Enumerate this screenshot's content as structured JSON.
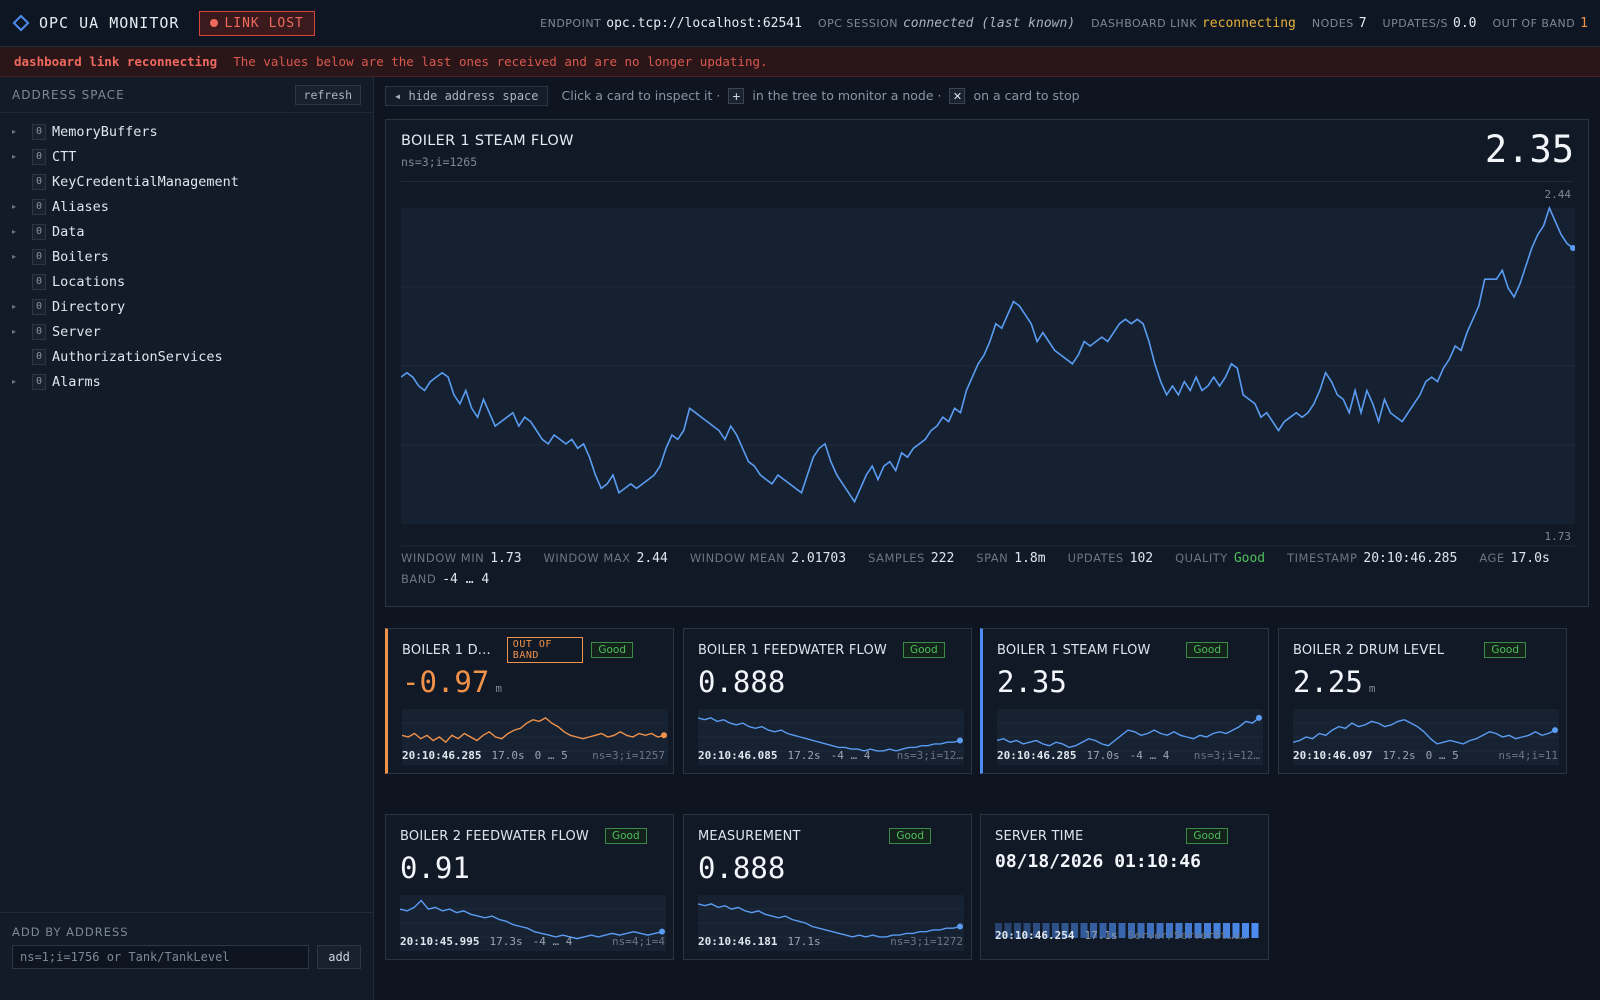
{
  "app": {
    "title": "OPC UA MONITOR",
    "link_status": "LINK LOST"
  },
  "status": {
    "endpoint_label": "ENDPOINT",
    "endpoint": "opc.tcp://localhost:62541",
    "session_label": "OPC SESSION",
    "session": "connected (last known)",
    "dashboard_label": "DASHBOARD LINK",
    "dashboard": "reconnecting",
    "nodes_label": "NODES",
    "nodes": "7",
    "updates_label": "UPDATES/S",
    "updates": "0.0",
    "oob_label": "OUT OF BAND",
    "oob": "1"
  },
  "banner": {
    "strong": "dashboard link reconnecting",
    "text": "The values below are the last ones received and are no longer updating."
  },
  "sidebar": {
    "title": "ADDRESS SPACE",
    "refresh_label": "refresh",
    "items": [
      {
        "label": "MemoryBuffers",
        "ns": "0",
        "expandable": true
      },
      {
        "label": "CTT",
        "ns": "0",
        "expandable": true
      },
      {
        "label": "KeyCredentialManagement",
        "ns": "0",
        "expandable": false
      },
      {
        "label": "Aliases",
        "ns": "0",
        "expandable": true
      },
      {
        "label": "Data",
        "ns": "0",
        "expandable": true
      },
      {
        "label": "Boilers",
        "ns": "0",
        "expandable": true
      },
      {
        "label": "Locations",
        "ns": "0",
        "expandable": false
      },
      {
        "label": "Directory",
        "ns": "0",
        "expandable": true
      },
      {
        "label": "Server",
        "ns": "0",
        "expandable": true
      },
      {
        "label": "AuthorizationServices",
        "ns": "0",
        "expandable": false
      },
      {
        "label": "Alarms",
        "ns": "0",
        "expandable": true
      }
    ],
    "add_title": "ADD BY ADDRESS",
    "add_placeholder": "ns=1;i=1756 or Tank/TankLevel",
    "add_button": "add"
  },
  "toolbar": {
    "hide_label": "◂ hide address space",
    "hint_1": "Click a card to inspect it ·",
    "hint_plus": "+",
    "hint_2": "in the tree to monitor a node ·",
    "hint_x": "✕",
    "hint_3": "on a card to stop"
  },
  "detail": {
    "title": "BOILER 1 STEAM FLOW",
    "ns": "ns=3;i=1265",
    "value": "2.35",
    "axis_max": "2.44",
    "axis_min": "1.73",
    "stats": {
      "window_min_label": "WINDOW MIN",
      "window_min": "1.73",
      "window_max_label": "WINDOW MAX",
      "window_max": "2.44",
      "window_mean_label": "WINDOW MEAN",
      "window_mean": "2.01703",
      "samples_label": "SAMPLES",
      "samples": "222",
      "span_label": "SPAN",
      "span": "1.8m",
      "updates_label": "UPDATES",
      "updates": "102",
      "quality_label": "QUALITY",
      "quality": "Good",
      "timestamp_label": "TIMESTAMP",
      "timestamp": "20:10:46.285",
      "age_label": "AGE",
      "age": "17.0s",
      "band_label": "BAND",
      "band": "-4 … 4"
    }
  },
  "cards": [
    {
      "title": "BOILER 1 D...",
      "oob": "OUT OF BAND",
      "quality": "Good",
      "value": "-0.97",
      "unit": "m",
      "ts": "20:10:46.285",
      "age": "17.0s",
      "band": "0 … 5",
      "ns": "ns=3;i=1257"
    },
    {
      "title": "BOILER 1 FEEDWATER FLOW",
      "quality": "Good",
      "value": "0.888",
      "ts": "20:10:46.085",
      "age": "17.2s",
      "band": "-4 … 4",
      "ns": "ns=3;i=12…"
    },
    {
      "title": "BOILER 1 STEAM FLOW",
      "quality": "Good",
      "value": "2.35",
      "ts": "20:10:46.285",
      "age": "17.0s",
      "band": "-4 … 4",
      "ns": "ns=3;i=12…"
    },
    {
      "title": "BOILER 2 DRUM LEVEL",
      "quality": "Good",
      "value": "2.25",
      "unit": "m",
      "ts": "20:10:46.097",
      "age": "17.2s",
      "band": "0 … 5",
      "ns": "ns=4;i=11"
    },
    {
      "title": "BOILER 2 FEEDWATER FLOW",
      "quality": "Good",
      "value": "0.91",
      "ts": "20:10:45.995",
      "age": "17.3s",
      "band": "-4 … 4",
      "ns": "ns=4;i=4"
    },
    {
      "title": "MEASUREMENT",
      "quality": "Good",
      "value": "0.888",
      "ts": "20:10:46.181",
      "age": "17.1s",
      "ns": "ns=3;i=1272"
    },
    {
      "title": "SERVER TIME",
      "quality": "Good",
      "value": "08/18/2026 01:10:46",
      "ts": "20:10:46.254",
      "age": "17.1s",
      "ns": "Server/ServerSt…u…"
    }
  ],
  "chart_data": [
    {
      "type": "line",
      "title": "BOILER 1 STEAM FLOW",
      "ylim": [
        1.73,
        2.44
      ],
      "grid": true,
      "series": [
        {
          "color": "#5a9cf2",
          "values": [
            2.06,
            2.07,
            2.06,
            2.04,
            2.03,
            2.05,
            2.06,
            2.07,
            2.06,
            2.02,
            2.0,
            2.03,
            1.99,
            1.97,
            2.01,
            1.98,
            1.95,
            1.96,
            1.97,
            1.98,
            1.95,
            1.97,
            1.96,
            1.94,
            1.92,
            1.91,
            1.93,
            1.92,
            1.91,
            1.92,
            1.9,
            1.91,
            1.88,
            1.84,
            1.81,
            1.82,
            1.84,
            1.8,
            1.81,
            1.82,
            1.81,
            1.82,
            1.83,
            1.84,
            1.86,
            1.9,
            1.93,
            1.92,
            1.94,
            1.99,
            1.98,
            1.97,
            1.96,
            1.95,
            1.94,
            1.92,
            1.95,
            1.93,
            1.9,
            1.87,
            1.86,
            1.84,
            1.83,
            1.82,
            1.84,
            1.83,
            1.82,
            1.81,
            1.8,
            1.84,
            1.88,
            1.9,
            1.91,
            1.87,
            1.84,
            1.82,
            1.8,
            1.78,
            1.81,
            1.84,
            1.86,
            1.83,
            1.86,
            1.87,
            1.85,
            1.89,
            1.88,
            1.9,
            1.91,
            1.92,
            1.94,
            1.95,
            1.97,
            1.96,
            1.99,
            1.98,
            2.03,
            2.06,
            2.09,
            2.11,
            2.14,
            2.18,
            2.17,
            2.2,
            2.23,
            2.22,
            2.2,
            2.18,
            2.14,
            2.16,
            2.14,
            2.12,
            2.11,
            2.1,
            2.09,
            2.11,
            2.14,
            2.13,
            2.14,
            2.15,
            2.14,
            2.16,
            2.18,
            2.19,
            2.18,
            2.19,
            2.18,
            2.14,
            2.09,
            2.05,
            2.02,
            2.04,
            2.02,
            2.05,
            2.03,
            2.06,
            2.03,
            2.04,
            2.06,
            2.04,
            2.06,
            2.09,
            2.08,
            2.02,
            2.01,
            2.0,
            1.97,
            1.98,
            1.96,
            1.94,
            1.96,
            1.97,
            1.98,
            1.97,
            1.98,
            2.0,
            2.03,
            2.07,
            2.05,
            2.02,
            2.01,
            1.98,
            2.03,
            1.98,
            2.03,
            2.0,
            1.96,
            2.01,
            1.98,
            1.97,
            1.96,
            1.98,
            2.0,
            2.02,
            2.05,
            2.06,
            2.05,
            2.08,
            2.1,
            2.13,
            2.12,
            2.16,
            2.19,
            2.22,
            2.28,
            2.28,
            2.28,
            2.3,
            2.26,
            2.24,
            2.27,
            2.31,
            2.35,
            2.38,
            2.4,
            2.44,
            2.41,
            2.38,
            2.36,
            2.35
          ]
        }
      ]
    },
    {
      "type": "line",
      "title": "BOILER 1 D...",
      "series": [
        {
          "color": "#f0924a",
          "values": [
            1.6,
            1.5,
            1.7,
            1.4,
            1.6,
            1.3,
            1.5,
            1.2,
            1.6,
            1.4,
            1.7,
            1.5,
            1.3,
            1.6,
            1.8,
            1.5,
            1.4,
            1.7,
            1.9,
            2.0,
            2.3,
            2.5,
            2.4,
            2.6,
            2.3,
            2.1,
            1.8,
            1.6,
            1.5,
            1.4,
            1.5,
            1.6,
            1.7,
            1.5,
            1.6,
            1.8,
            1.6,
            1.5,
            1.7,
            1.6,
            1.7,
            1.5,
            1.6
          ]
        }
      ]
    },
    {
      "type": "line",
      "title": "BOILER 1 FEEDWATER FLOW",
      "series": [
        {
          "color": "#5a9cf2",
          "values": [
            2.6,
            2.5,
            2.6,
            2.4,
            2.5,
            2.3,
            2.2,
            2.3,
            2.1,
            2.0,
            2.1,
            1.9,
            1.8,
            1.9,
            1.7,
            1.6,
            1.5,
            1.4,
            1.3,
            1.2,
            1.1,
            1.0,
            0.9,
            0.9,
            0.8,
            0.8,
            0.7,
            0.8,
            0.7,
            0.7,
            0.8,
            0.7,
            0.8,
            0.9,
            0.9,
            1.0,
            1.0,
            1.1,
            1.1,
            1.2,
            1.2,
            1.3
          ]
        }
      ]
    },
    {
      "type": "line",
      "title": "BOILER 1 STEAM FLOW",
      "series": [
        {
          "color": "#5a9cf2",
          "values": [
            1.3,
            1.4,
            1.2,
            1.3,
            1.1,
            1.2,
            1.3,
            1.1,
            1.0,
            1.2,
            1.1,
            0.9,
            1.0,
            1.2,
            1.4,
            1.3,
            1.1,
            1.0,
            1.3,
            1.6,
            1.9,
            1.8,
            1.6,
            1.7,
            1.9,
            1.7,
            1.6,
            1.8,
            1.6,
            1.5,
            1.4,
            1.6,
            1.5,
            1.7,
            1.8,
            1.7,
            1.9,
            2.1,
            2.4,
            2.3,
            2.6
          ]
        }
      ]
    },
    {
      "type": "line",
      "title": "BOILER 2 DRUM LEVEL",
      "series": [
        {
          "color": "#5a9cf2",
          "values": [
            1.2,
            1.3,
            1.5,
            1.4,
            1.7,
            1.6,
            1.9,
            2.1,
            2.0,
            2.3,
            2.1,
            2.2,
            2.4,
            2.3,
            2.1,
            2.2,
            2.4,
            2.5,
            2.3,
            2.1,
            1.8,
            1.4,
            1.1,
            1.2,
            1.3,
            1.2,
            1.1,
            1.3,
            1.4,
            1.6,
            1.8,
            1.7,
            1.5,
            1.6,
            1.4,
            1.5,
            1.6,
            1.8,
            1.6,
            1.7,
            1.9
          ]
        }
      ]
    },
    {
      "type": "line",
      "title": "BOILER 2 FEEDWATER FLOW",
      "series": [
        {
          "color": "#5a9cf2",
          "values": [
            2.3,
            2.2,
            2.4,
            2.8,
            2.3,
            2.4,
            2.2,
            2.3,
            2.1,
            2.2,
            2.0,
            1.9,
            1.8,
            1.9,
            1.7,
            1.6,
            1.4,
            1.3,
            1.2,
            1.0,
            0.9,
            0.8,
            0.7,
            0.8,
            0.7,
            0.6,
            0.7,
            0.8,
            0.7,
            0.8,
            0.9,
            0.8,
            0.9,
            1.0,
            0.9,
            0.8,
            0.9,
            1.0
          ]
        }
      ]
    },
    {
      "type": "line",
      "title": "MEASUREMENT",
      "series": [
        {
          "color": "#5a9cf2",
          "values": [
            2.6,
            2.5,
            2.6,
            2.4,
            2.5,
            2.3,
            2.4,
            2.2,
            2.1,
            2.2,
            2.0,
            1.9,
            1.8,
            1.9,
            1.7,
            1.6,
            1.5,
            1.3,
            1.2,
            1.1,
            1.0,
            0.9,
            0.8,
            0.7,
            0.8,
            0.7,
            0.8,
            0.7,
            0.7,
            0.8,
            0.8,
            0.9,
            0.9,
            1.0,
            1.0,
            1.1,
            1.1,
            1.2,
            1.2,
            1.3
          ]
        }
      ]
    }
  ]
}
